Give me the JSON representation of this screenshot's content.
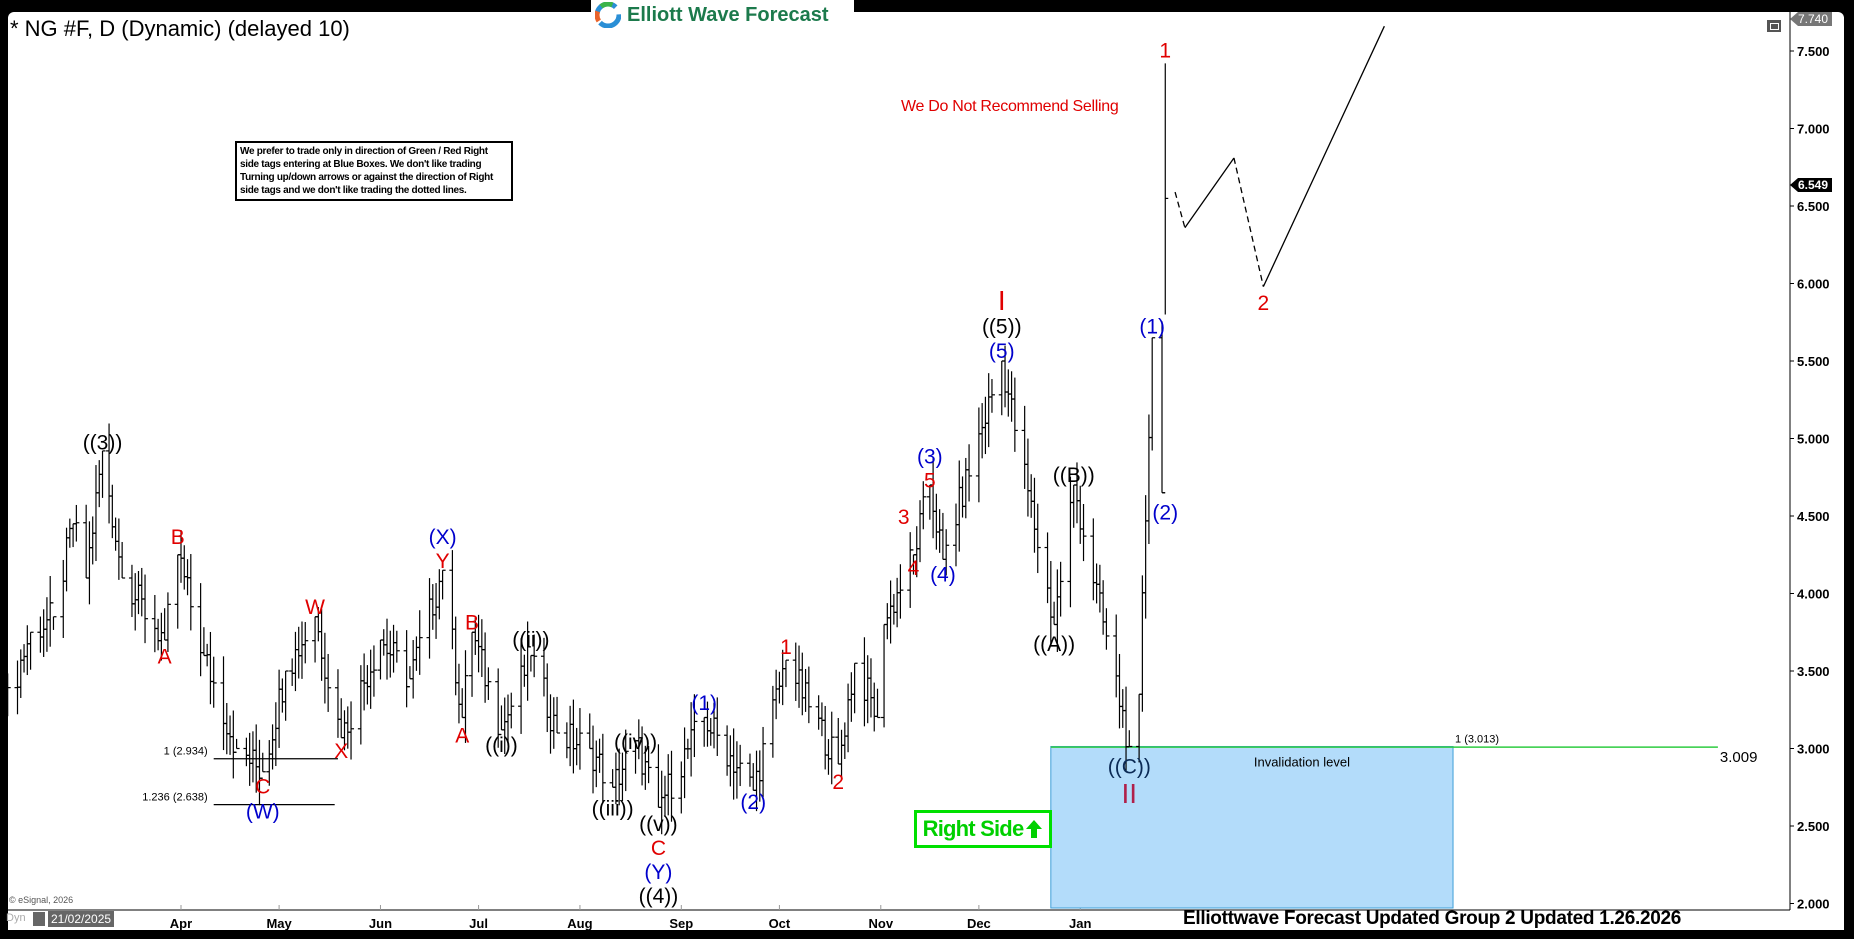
{
  "header": {
    "title": "* NG #F, D (Dynamic) (delayed 10)",
    "logo_text": "Elliott Wave Forecast",
    "disclaimer": "We prefer to trade only in direction of Green / Red Right side tags entering at Blue Boxes. We don't like trading Turning up/down arrows or against the direction of Right side tags and we don't like trading the dotted lines.",
    "no_sell_note": "We Do Not Recommend Selling",
    "right_side_label": "Right Side",
    "right_side_icon": "arrow-up-icon",
    "footer": "Elliottwave Forecast Updated Group 2 Updated 1.26.2026",
    "copyright": "© eSignal, 2026",
    "mode_label": "Dyn",
    "cursor_date": "21/02/2025",
    "high_tag": "7.740",
    "last_tag": "6.549"
  },
  "colors": {
    "red": "#e00000",
    "blue": "#0000cc",
    "black": "#000000",
    "dark_red": "#b0204a",
    "box": "#b3dcfa",
    "box_border": "#3f9fd8",
    "green": "#00e000",
    "line_green": "#2ecc40"
  },
  "chart_data": {
    "type": "ohlc",
    "ylim": [
      2.0,
      7.74
    ],
    "yticks": [
      "7.500",
      "7.000",
      "6.500",
      "6.000",
      "5.500",
      "5.000",
      "4.500",
      "4.000",
      "3.500",
      "3.000",
      "2.500",
      "2.000"
    ],
    "xticks": [
      {
        "label": "Apr",
        "date": "2025-04-01"
      },
      {
        "label": "May",
        "date": "2025-05-01"
      },
      {
        "label": "Jun",
        "date": "2025-06-01"
      },
      {
        "label": "Jul",
        "date": "2025-07-01"
      },
      {
        "label": "Aug",
        "date": "2025-08-01"
      },
      {
        "label": "Sep",
        "date": "2025-09-01"
      },
      {
        "label": "Oct",
        "date": "2025-10-01"
      },
      {
        "label": "Nov",
        "date": "2025-11-01"
      },
      {
        "label": "Dec",
        "date": "2025-12-01"
      },
      {
        "label": "Jan",
        "date": "2026-01-01"
      }
    ],
    "price_swings": [
      [
        "2025-02-07",
        3.3
      ],
      [
        "2025-02-14",
        3.75
      ],
      [
        "2025-02-21",
        3.85
      ],
      [
        "2025-02-27",
        4.45
      ],
      [
        "2025-03-03",
        4.1
      ],
      [
        "2025-03-08",
        4.92
      ],
      [
        "2025-03-14",
        4.1
      ],
      [
        "2025-03-27",
        3.7
      ],
      [
        "2025-03-31",
        4.25
      ],
      [
        "2025-04-08",
        3.6
      ],
      [
        "2025-04-18",
        3.0
      ],
      [
        "2025-04-26",
        2.85
      ],
      [
        "2025-05-03",
        3.5
      ],
      [
        "2025-05-12",
        3.85
      ],
      [
        "2025-05-20",
        3.07
      ],
      [
        "2025-06-01",
        3.7
      ],
      [
        "2025-06-10",
        3.45
      ],
      [
        "2025-06-20",
        4.15
      ],
      [
        "2025-06-26",
        3.2
      ],
      [
        "2025-06-29",
        3.75
      ],
      [
        "2025-07-08",
        3.12
      ],
      [
        "2025-07-17",
        3.6
      ],
      [
        "2025-07-25",
        3.1
      ],
      [
        "2025-08-04",
        3.0
      ],
      [
        "2025-08-11",
        2.75
      ],
      [
        "2025-08-18",
        3.05
      ],
      [
        "2025-08-25",
        2.62
      ],
      [
        "2025-09-08",
        3.2
      ],
      [
        "2025-09-23",
        2.73
      ],
      [
        "2025-10-03",
        3.57
      ],
      [
        "2025-10-19",
        2.9
      ],
      [
        "2025-10-24",
        3.55
      ],
      [
        "2025-10-31",
        3.2
      ],
      [
        "2025-11-02",
        3.8
      ],
      [
        "2025-11-11",
        4.25
      ],
      [
        "2025-11-16",
        4.7
      ],
      [
        "2025-11-20",
        4.22
      ],
      [
        "2025-12-08",
        5.5
      ],
      [
        "2025-12-24",
        3.8
      ],
      [
        "2025-12-30",
        4.7
      ],
      [
        "2026-01-16",
        3.013
      ],
      [
        "2026-01-19",
        3.35
      ],
      [
        "2026-01-23",
        5.65
      ],
      [
        "2026-01-26",
        4.65
      ],
      [
        "2026-01-27",
        7.42
      ]
    ],
    "last_close": 6.549,
    "projection": [
      {
        "from": [
          "2026-01-30",
          6.59
        ],
        "to": [
          "2026-02-02",
          6.36
        ],
        "style": "dashed"
      },
      {
        "from": [
          "2026-02-02",
          6.36
        ],
        "to": [
          "2026-02-17",
          6.81
        ],
        "style": "solid"
      },
      {
        "from": [
          "2026-02-17",
          6.81
        ],
        "to": [
          "2026-02-26",
          5.98
        ],
        "style": "dashed"
      },
      {
        "from": [
          "2026-02-26",
          5.98
        ],
        "to": [
          "2026-04-04",
          7.66
        ],
        "style": "solid"
      }
    ],
    "fib_levels": [
      {
        "label": "1 (2.934)",
        "price": 2.934,
        "from": "2025-04-11",
        "to": "2025-05-19"
      },
      {
        "label": "1.236 (2.638)",
        "price": 2.638,
        "from": "2025-04-11",
        "to": "2025-05-18"
      }
    ],
    "blue_box": {
      "from": "2025-12-23",
      "to": "2026-04-25",
      "top": 3.013,
      "label": "Invalidation level",
      "fib_label": "1 (3.013)"
    },
    "invalidation_line": {
      "price": 3.009,
      "label": "3.009",
      "to": "2026-07-15"
    },
    "wave_labels": [
      {
        "t": "((3))",
        "d": "2025-03-08",
        "p": 4.98,
        "c": "black"
      },
      {
        "t": "B",
        "d": "2025-03-31",
        "p": 4.37,
        "c": "red"
      },
      {
        "t": "A",
        "d": "2025-03-27",
        "p": 3.6,
        "c": "red"
      },
      {
        "t": "C",
        "d": "2025-04-26",
        "p": 2.76,
        "c": "red"
      },
      {
        "t": "(W)",
        "d": "2025-04-26",
        "p": 2.6,
        "c": "blue"
      },
      {
        "t": "W",
        "d": "2025-05-12",
        "p": 3.92,
        "c": "red"
      },
      {
        "t": "X",
        "d": "2025-05-20",
        "p": 2.99,
        "c": "red"
      },
      {
        "t": "(X)",
        "d": "2025-06-20",
        "p": 4.37,
        "c": "blue"
      },
      {
        "t": "Y",
        "d": "2025-06-20",
        "p": 4.23,
        "c": "red"
      },
      {
        "t": "A",
        "d": "2025-06-26",
        "p": 3.09,
        "c": "red"
      },
      {
        "t": "B",
        "d": "2025-06-29",
        "p": 3.82,
        "c": "red"
      },
      {
        "t": "((i))",
        "d": "2025-07-08",
        "p": 3.03,
        "c": "black"
      },
      {
        "t": "((ii))",
        "d": "2025-07-17",
        "p": 3.71,
        "c": "black"
      },
      {
        "t": "((iii))",
        "d": "2025-08-11",
        "p": 2.62,
        "c": "black"
      },
      {
        "t": "((iv))",
        "d": "2025-08-18",
        "p": 3.05,
        "c": "black"
      },
      {
        "t": "((v))",
        "d": "2025-08-25",
        "p": 2.52,
        "c": "black"
      },
      {
        "t": "C",
        "d": "2025-08-25",
        "p": 2.38,
        "c": "red"
      },
      {
        "t": "(Y)",
        "d": "2025-08-25",
        "p": 2.24,
        "c": "blue"
      },
      {
        "t": "((4))",
        "d": "2025-08-25",
        "p": 2.09,
        "c": "black"
      },
      {
        "t": "(1)",
        "d": "2025-09-08",
        "p": 3.3,
        "c": "blue"
      },
      {
        "t": "(2)",
        "d": "2025-09-23",
        "p": 2.66,
        "c": "blue"
      },
      {
        "t": "1",
        "d": "2025-10-03",
        "p": 3.66,
        "c": "red"
      },
      {
        "t": "2",
        "d": "2025-10-19",
        "p": 2.79,
        "c": "red"
      },
      {
        "t": "3",
        "d": "2025-11-08",
        "p": 4.5,
        "c": "red"
      },
      {
        "t": "4",
        "d": "2025-11-11",
        "p": 4.17,
        "c": "red"
      },
      {
        "t": "5",
        "d": "2025-11-16",
        "p": 4.75,
        "c": "red"
      },
      {
        "t": "(3)",
        "d": "2025-11-16",
        "p": 4.89,
        "c": "blue"
      },
      {
        "t": "(4)",
        "d": "2025-11-20",
        "p": 4.13,
        "c": "blue"
      },
      {
        "t": "I",
        "d": "2025-12-08",
        "p": 5.88,
        "c": "red",
        "big": true
      },
      {
        "t": "((5))",
        "d": "2025-12-08",
        "p": 5.73,
        "c": "black"
      },
      {
        "t": "(5)",
        "d": "2025-12-08",
        "p": 5.57,
        "c": "blue"
      },
      {
        "t": "((A))",
        "d": "2025-12-24",
        "p": 3.68,
        "c": "black"
      },
      {
        "t": "((B))",
        "d": "2025-12-30",
        "p": 4.77,
        "c": "black"
      },
      {
        "t": "((C))",
        "d": "2026-01-16",
        "p": 2.89,
        "c": "navy"
      },
      {
        "t": "II",
        "d": "2026-01-16",
        "p": 2.7,
        "c": "dark_red",
        "big": true
      },
      {
        "t": "(1)",
        "d": "2026-01-23",
        "p": 5.73,
        "c": "blue"
      },
      {
        "t": "(2)",
        "d": "2026-01-27",
        "p": 4.53,
        "c": "blue"
      },
      {
        "t": "1",
        "d": "2026-01-27",
        "p": 7.51,
        "c": "red"
      },
      {
        "t": "2",
        "d": "2026-02-26",
        "p": 5.88,
        "c": "red"
      }
    ]
  }
}
